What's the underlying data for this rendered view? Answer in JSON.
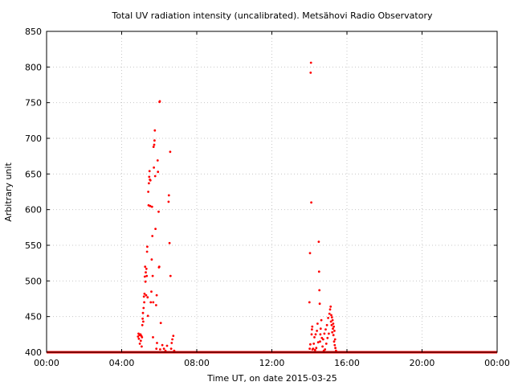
{
  "chart_data": {
    "type": "scatter",
    "title": "Total UV radiation intensity (uncalibrated). Metsähovi Radio Observatory",
    "xlabel": "Time UT, on date 2015-03-25",
    "ylabel": "Arbitrary unit",
    "xlim": [
      "00:00",
      "24:00"
    ],
    "ylim": [
      400,
      850
    ],
    "x_ticks": [
      "00:00",
      "04:00",
      "08:00",
      "12:00",
      "16:00",
      "20:00",
      "00:00"
    ],
    "y_ticks": [
      400,
      450,
      500,
      550,
      600,
      650,
      700,
      750,
      800,
      850
    ],
    "grid": true,
    "baseline": {
      "value": 400,
      "x_start": "00:00",
      "x_end": "24:00"
    },
    "series": [
      {
        "color": "#ff0000",
        "points": [
          [
            "04:52",
            422
          ],
          [
            "04:54",
            426
          ],
          [
            "04:55",
            419
          ],
          [
            "04:57",
            424
          ],
          [
            "04:58",
            412
          ],
          [
            "05:00",
            425
          ],
          [
            "05:01",
            416
          ],
          [
            "05:03",
            423
          ],
          [
            "05:04",
            408
          ],
          [
            "05:05",
            421
          ],
          [
            "05:06",
            438
          ],
          [
            "05:07",
            447
          ],
          [
            "05:08",
            455
          ],
          [
            "05:09",
            443
          ],
          [
            "05:10",
            462
          ],
          [
            "05:11",
            478
          ],
          [
            "05:12",
            470
          ],
          [
            "05:13",
            482
          ],
          [
            "05:14",
            506
          ],
          [
            "05:15",
            520
          ],
          [
            "05:16",
            499
          ],
          [
            "05:17",
            512
          ],
          [
            "05:18",
            480
          ],
          [
            "05:19",
            517
          ],
          [
            "05:20",
            507
          ],
          [
            "05:21",
            541
          ],
          [
            "05:22",
            548
          ],
          [
            "05:23",
            477
          ],
          [
            "05:24",
            451
          ],
          [
            "05:25",
            625
          ],
          [
            "05:26",
            606
          ],
          [
            "05:27",
            637
          ],
          [
            "05:28",
            646
          ],
          [
            "05:29",
            654
          ],
          [
            "05:30",
            642
          ],
          [
            "05:31",
            605
          ],
          [
            "05:32",
            641
          ],
          [
            "05:33",
            470
          ],
          [
            "05:35",
            485
          ],
          [
            "05:36",
            530
          ],
          [
            "05:37",
            604
          ],
          [
            "05:38",
            563
          ],
          [
            "05:39",
            507
          ],
          [
            "05:40",
            421
          ],
          [
            "05:41",
            470
          ],
          [
            "05:42",
            688
          ],
          [
            "05:43",
            659
          ],
          [
            "05:44",
            691
          ],
          [
            "05:45",
            697
          ],
          [
            "05:46",
            711
          ],
          [
            "05:47",
            647
          ],
          [
            "05:48",
            573
          ],
          [
            "05:50",
            466
          ],
          [
            "05:51",
            405
          ],
          [
            "05:52",
            480
          ],
          [
            "05:53",
            413
          ],
          [
            "05:55",
            669
          ],
          [
            "05:56",
            653
          ],
          [
            "05:58",
            597
          ],
          [
            "05:59",
            519
          ],
          [
            "06:00",
            520
          ],
          [
            "06:01",
            751
          ],
          [
            "06:02",
            752
          ],
          [
            "06:03",
            404
          ],
          [
            "06:05",
            441
          ],
          [
            "06:07",
            400
          ],
          [
            "06:10",
            410
          ],
          [
            "06:15",
            405
          ],
          [
            "06:20",
            402
          ],
          [
            "06:25",
            409
          ],
          [
            "06:30",
            611
          ],
          [
            "06:31",
            620
          ],
          [
            "06:33",
            553
          ],
          [
            "06:35",
            681
          ],
          [
            "06:36",
            507
          ],
          [
            "06:38",
            405
          ],
          [
            "06:40",
            413
          ],
          [
            "06:42",
            418
          ],
          [
            "06:45",
            423
          ],
          [
            "06:48",
            402
          ],
          [
            "14:00",
            470
          ],
          [
            "14:01",
            405
          ],
          [
            "14:02",
            539
          ],
          [
            "14:03",
            411
          ],
          [
            "14:04",
            792
          ],
          [
            "14:05",
            806
          ],
          [
            "14:06",
            610
          ],
          [
            "14:07",
            425
          ],
          [
            "14:08",
            432
          ],
          [
            "14:09",
            436
          ],
          [
            "14:10",
            404
          ],
          [
            "14:12",
            405
          ],
          [
            "14:14",
            412
          ],
          [
            "14:16",
            421
          ],
          [
            "14:18",
            403
          ],
          [
            "14:20",
            425
          ],
          [
            "14:22",
            406
          ],
          [
            "14:24",
            430
          ],
          [
            "14:26",
            440
          ],
          [
            "14:28",
            414
          ],
          [
            "14:30",
            555
          ],
          [
            "14:31",
            513
          ],
          [
            "14:32",
            487
          ],
          [
            "14:33",
            468
          ],
          [
            "14:34",
            415
          ],
          [
            "14:35",
            425
          ],
          [
            "14:36",
            433
          ],
          [
            "14:38",
            445
          ],
          [
            "14:40",
            420
          ],
          [
            "14:42",
            408
          ],
          [
            "14:44",
            418
          ],
          [
            "14:46",
            402
          ],
          [
            "14:48",
            426
          ],
          [
            "14:50",
            404
          ],
          [
            "14:52",
            432
          ],
          [
            "14:54",
            412
          ],
          [
            "14:56",
            438
          ],
          [
            "14:58",
            420
          ],
          [
            "15:00",
            448
          ],
          [
            "15:02",
            426
          ],
          [
            "15:04",
            454
          ],
          [
            "15:06",
            460
          ],
          [
            "15:08",
            464
          ],
          [
            "15:09",
            443
          ],
          [
            "15:10",
            452
          ],
          [
            "15:11",
            438
          ],
          [
            "15:12",
            449
          ],
          [
            "15:13",
            428
          ],
          [
            "15:14",
            445
          ],
          [
            "15:15",
            433
          ],
          [
            "15:16",
            440
          ],
          [
            "15:17",
            424
          ],
          [
            "15:18",
            436
          ],
          [
            "15:19",
            415
          ],
          [
            "15:20",
            430
          ],
          [
            "15:21",
            410
          ],
          [
            "15:22",
            418
          ],
          [
            "15:23",
            406
          ],
          [
            "15:25",
            402
          ]
        ]
      }
    ]
  }
}
